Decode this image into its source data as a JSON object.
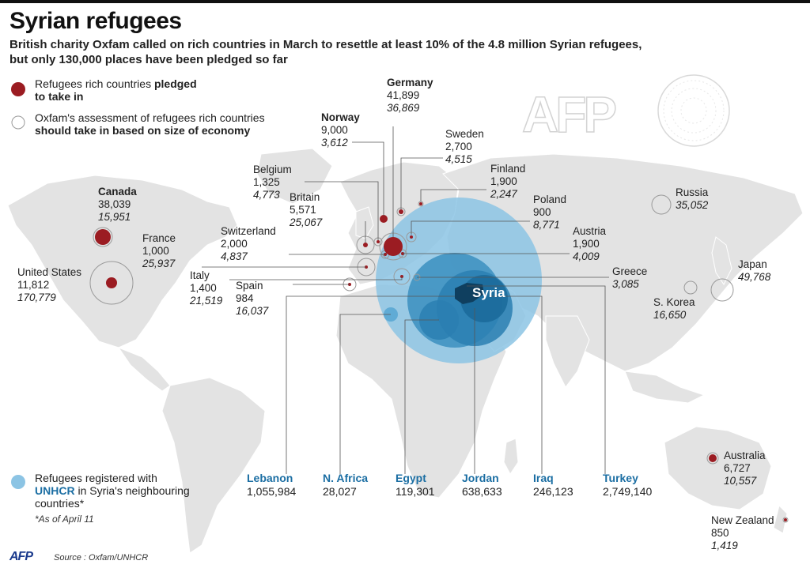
{
  "header": {
    "title": "Syrian refugees",
    "subtitle_line1": "British charity Oxfam called on rich countries in March to resettle at least 10% of the 4.8 million Syrian refugees,",
    "subtitle_line2": "but only 130,000 places have been pledged so far"
  },
  "legend": {
    "pledged_line1": "Refugees rich countries ",
    "pledged_bold1": "pledged",
    "pledged_line2": "to take in",
    "assessment_line1": "Oxfam's assessment of refugees rich countries",
    "assessment_line2": "should take in based on size of economy",
    "unhcr_line1": "Refugees registered with",
    "unhcr_bold": "UNHCR",
    "unhcr_rest": " in Syria's neighbouring",
    "unhcr_line3": "countries*",
    "footnote": "*As of April 11"
  },
  "colors": {
    "pledged": "#9b1c22",
    "unhcr_light": "#8cc4e4",
    "unhcr_mid": "#3b8fc0",
    "unhcr_dark": "#1a6a9a",
    "land": "#e3e3e3"
  },
  "map_center_label": "Syria",
  "countries": [
    {
      "name": "Germany",
      "pledged": "41,899",
      "assessed": "36,869",
      "bold": true
    },
    {
      "name": "Norway",
      "pledged": "9,000",
      "assessed": "3,612",
      "bold": true
    },
    {
      "name": "Sweden",
      "pledged": "2,700",
      "assessed": "4,515",
      "bold": false
    },
    {
      "name": "Finland",
      "pledged": "1,900",
      "assessed": "2,247",
      "bold": false
    },
    {
      "name": "Belgium",
      "pledged": "1,325",
      "assessed": "4,773",
      "bold": false
    },
    {
      "name": "Britain",
      "pledged": "5,571",
      "assessed": "25,067",
      "bold": false
    },
    {
      "name": "Poland",
      "pledged": "900",
      "assessed": "8,771",
      "bold": false
    },
    {
      "name": "Canada",
      "pledged": "38,039",
      "assessed": "15,951",
      "bold": true
    },
    {
      "name": "Switzerland",
      "pledged": "2,000",
      "assessed": "4,837",
      "bold": false
    },
    {
      "name": "Austria",
      "pledged": "1,900",
      "assessed": "4,009",
      "bold": false
    },
    {
      "name": "France",
      "pledged": "1,000",
      "assessed": "25,937",
      "bold": false
    },
    {
      "name": "United States",
      "pledged": "11,812",
      "assessed": "170,779",
      "bold": false
    },
    {
      "name": "Italy",
      "pledged": "1,400",
      "assessed": "21,519",
      "bold": false
    },
    {
      "name": "Spain",
      "pledged": "984",
      "assessed": "16,037",
      "bold": false
    },
    {
      "name": "Greece",
      "pledged": "",
      "assessed": "3,085",
      "bold": false
    },
    {
      "name": "Russia",
      "pledged": "",
      "assessed": "35,052",
      "bold": false
    },
    {
      "name": "Japan",
      "pledged": "",
      "assessed": "49,768",
      "bold": false
    },
    {
      "name": "S. Korea",
      "pledged": "",
      "assessed": "16,650",
      "bold": false
    },
    {
      "name": "Australia",
      "pledged": "6,727",
      "assessed": "10,557",
      "bold": false
    },
    {
      "name": "New Zealand",
      "pledged": "850",
      "assessed": "1,419",
      "bold": false
    }
  ],
  "neighbours": [
    {
      "name": "Lebanon",
      "value": "1,055,984"
    },
    {
      "name": "N. Africa",
      "value": "28,027"
    },
    {
      "name": "Egypt",
      "value": "119,301"
    },
    {
      "name": "Jordan",
      "value": "638,633"
    },
    {
      "name": "Iraq",
      "value": "246,123"
    },
    {
      "name": "Turkey",
      "value": "2,749,140"
    }
  ],
  "footer": {
    "logo": "AFP",
    "source": "Source : Oxfam/UNHCR",
    "watermark": "AFP"
  }
}
